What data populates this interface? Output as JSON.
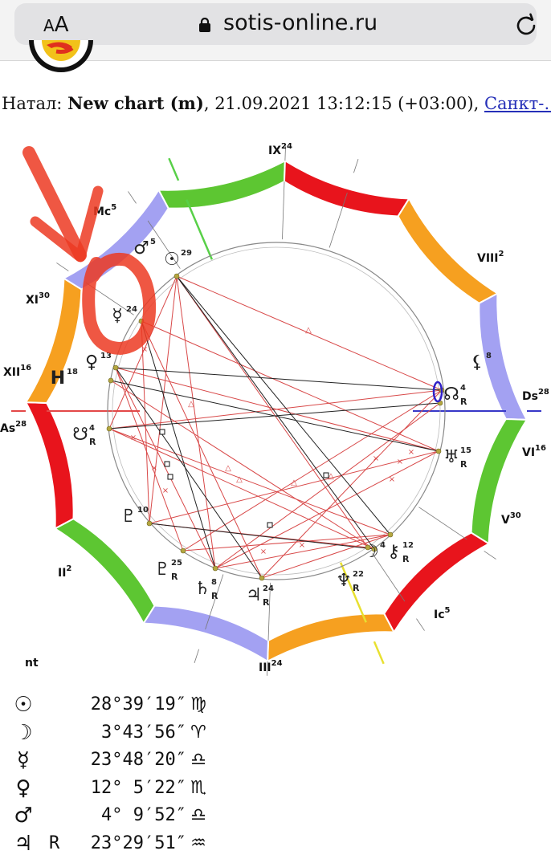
{
  "browser": {
    "aa_small": "A",
    "aa_large": "A",
    "url": "sotis-online.ru"
  },
  "header": {
    "prefix": "Натал: ",
    "chart_name": "New chart (m)",
    "details": ", 21.09.2021 13:12:15 (+03:00), ",
    "city": "Санкт-…"
  },
  "chart": {
    "ascendant_deg": 28,
    "houses": [
      {
        "label": "As",
        "deg": "28"
      },
      {
        "label": "II",
        "deg": "2"
      },
      {
        "label": "III",
        "deg": "24"
      },
      {
        "label": "Ic",
        "deg": "5"
      },
      {
        "label": "V",
        "deg": "30"
      },
      {
        "label": "VI",
        "deg": "16"
      },
      {
        "label": "Ds",
        "deg": "28"
      },
      {
        "label": "VIII",
        "deg": "2"
      },
      {
        "label": "IX",
        "deg": "24"
      },
      {
        "label": "Mc",
        "deg": "5"
      },
      {
        "label": "XI",
        "deg": "30"
      },
      {
        "label": "XII",
        "deg": "16"
      }
    ],
    "planets": [
      {
        "name": "sun",
        "glyph": "☉",
        "deg": "29",
        "r": ""
      },
      {
        "name": "mars",
        "glyph": "♂",
        "deg": "5",
        "r": ""
      },
      {
        "name": "mercury",
        "glyph": "☿",
        "deg": "24",
        "r": ""
      },
      {
        "name": "venus",
        "glyph": "♀",
        "deg": "13",
        "r": ""
      },
      {
        "name": "uranus-h",
        "glyph": "H",
        "deg": "18",
        "r": ""
      },
      {
        "name": "node-left",
        "glyph": "☋",
        "deg": "4",
        "r": "R"
      },
      {
        "name": "pluto",
        "glyph": "♇",
        "deg": "10",
        "r": ""
      },
      {
        "name": "proserpina",
        "glyph": "♇",
        "deg": "25",
        "r": "R"
      },
      {
        "name": "saturn",
        "glyph": "♄",
        "deg": "8",
        "r": "R"
      },
      {
        "name": "jupiter",
        "glyph": "♃",
        "deg": "24",
        "r": "R"
      },
      {
        "name": "neptune",
        "glyph": "♆",
        "deg": "22",
        "r": "R"
      },
      {
        "name": "moon",
        "glyph": "☽",
        "deg": "4",
        "r": ""
      },
      {
        "name": "chiron",
        "glyph": "⚷",
        "deg": "12",
        "r": "R"
      },
      {
        "name": "uranus",
        "glyph": "♅",
        "deg": "15",
        "r": "R"
      },
      {
        "name": "node-right",
        "glyph": "☊",
        "deg": "4",
        "r": "R"
      },
      {
        "name": "lilith",
        "glyph": "⚸",
        "deg": "8",
        "r": ""
      }
    ]
  },
  "table_label": "nt",
  "positions": [
    {
      "glyph": "☉",
      "retro": "",
      "degree": "28°39′19″",
      "sign": "♍"
    },
    {
      "glyph": "☽",
      "retro": "",
      "degree": "3°43′56″",
      "sign": "♈"
    },
    {
      "glyph": "☿",
      "retro": "",
      "degree": "23°48′20″",
      "sign": "♎"
    },
    {
      "glyph": "♀",
      "retro": "",
      "degree": "12° 5′22″",
      "sign": "♏"
    },
    {
      "glyph": "♂",
      "retro": "",
      "degree": "4° 9′52″",
      "sign": "♎"
    },
    {
      "glyph": "♃",
      "retro": "R",
      "degree": "23°29′51″",
      "sign": "♒"
    }
  ],
  "colors": {
    "fire": "#e8141c",
    "earth": "#f6a020",
    "air": "#a3a1f2",
    "water": "#5dc632",
    "aspect_red": "#d84848",
    "aspect_black": "#222222",
    "annotation": "#ec3a22"
  }
}
